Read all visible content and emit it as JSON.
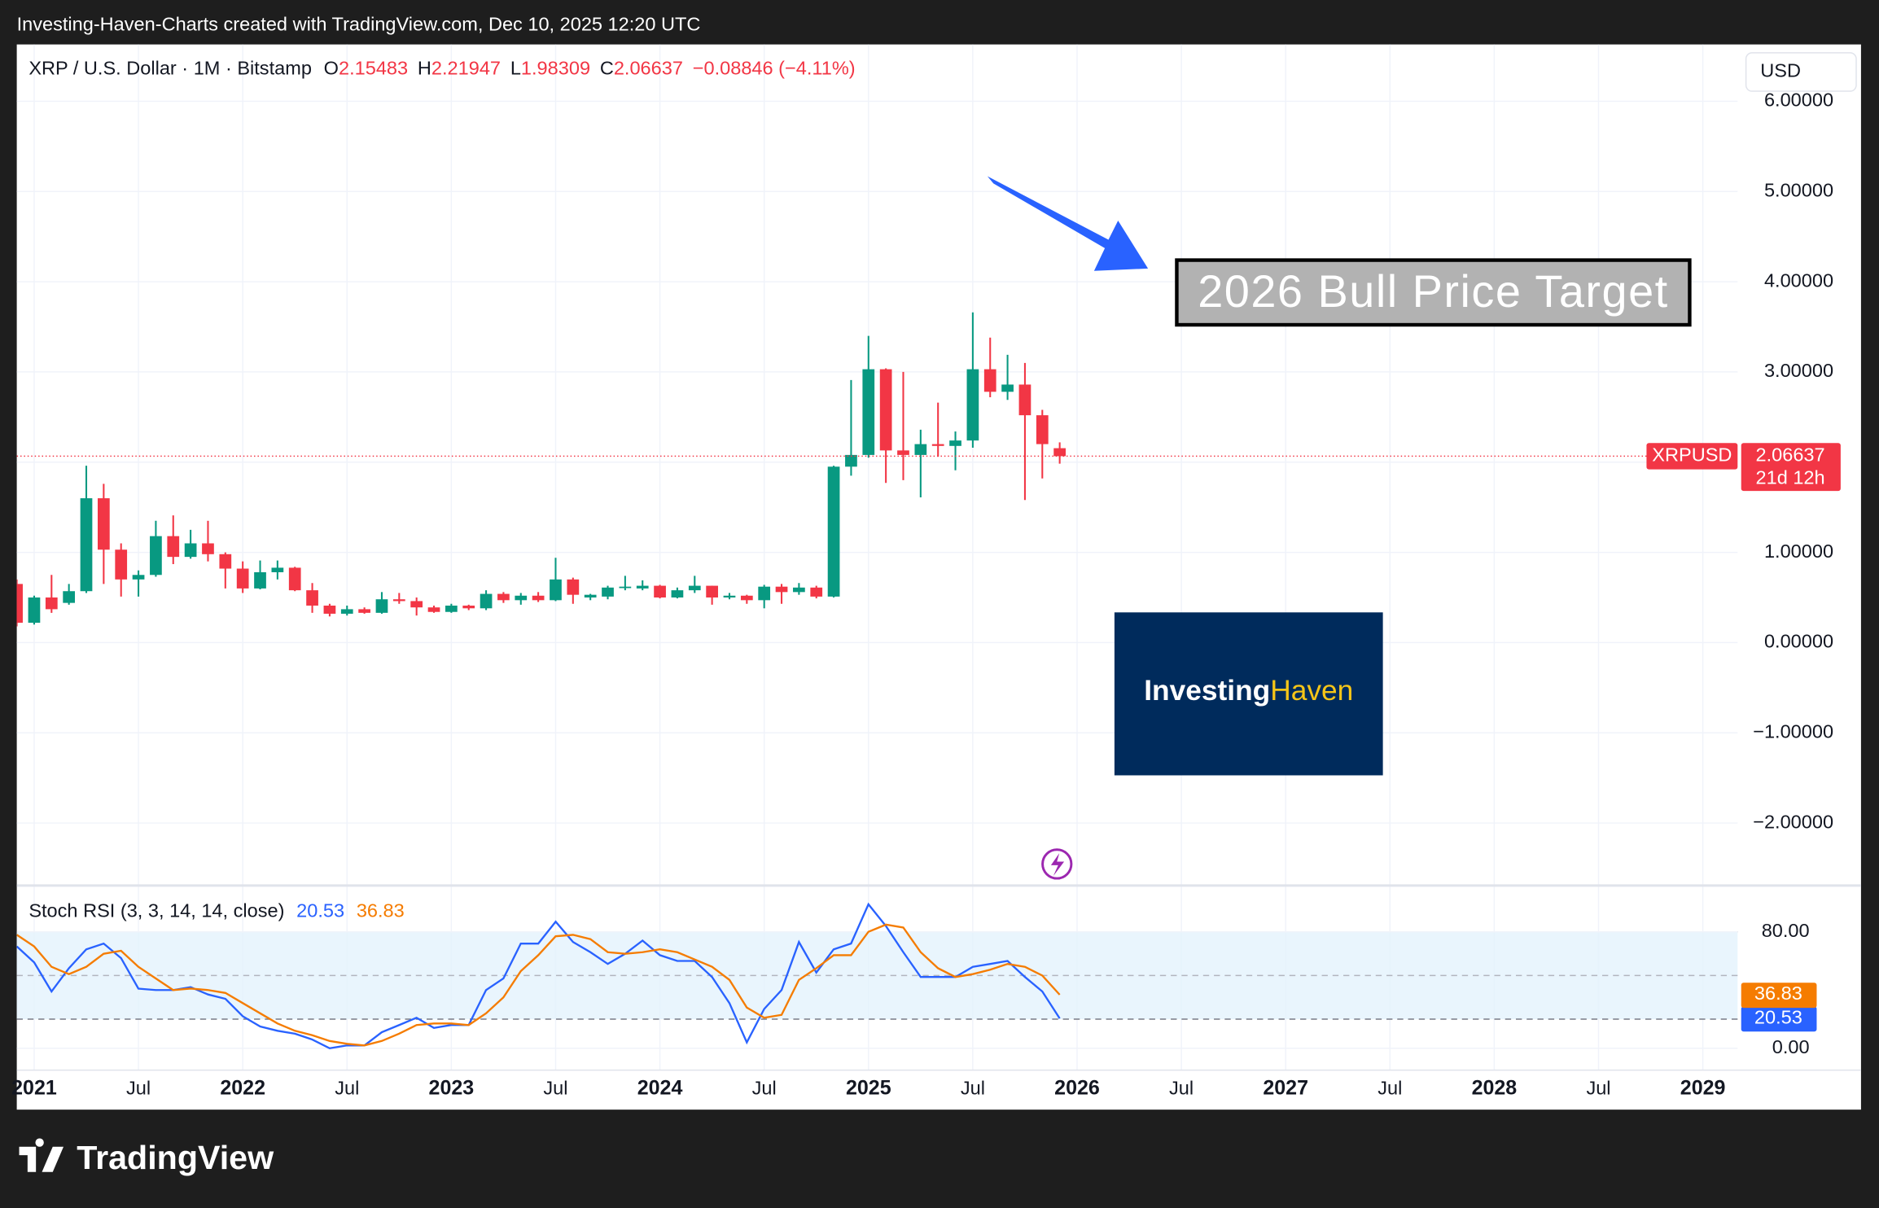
{
  "header": {
    "credit": "Investing-Haven-Charts created with TradingView.com, Dec 10, 2025 12:20 UTC"
  },
  "chart_data": {
    "type": "candlestick",
    "symbol": "XRP / U.S. Dollar · 1M · Bitstamp",
    "ohlc_labels": [
      "O",
      "H",
      "L",
      "C"
    ],
    "change": "−0.08846 (−4.11%)",
    "currency": "USD",
    "x": [
      "2020-12",
      "2021-01",
      "2021-02",
      "2021-03",
      "2021-04",
      "2021-05",
      "2021-06",
      "2021-07",
      "2021-08",
      "2021-09",
      "2021-10",
      "2021-11",
      "2021-12",
      "2022-01",
      "2022-02",
      "2022-03",
      "2022-04",
      "2022-05",
      "2022-06",
      "2022-07",
      "2022-08",
      "2022-09",
      "2022-10",
      "2022-11",
      "2022-12",
      "2023-01",
      "2023-02",
      "2023-03",
      "2023-04",
      "2023-05",
      "2023-06",
      "2023-07",
      "2023-08",
      "2023-09",
      "2023-10",
      "2023-11",
      "2023-12",
      "2024-01",
      "2024-02",
      "2024-03",
      "2024-04",
      "2024-05",
      "2024-06",
      "2024-07",
      "2024-08",
      "2024-09",
      "2024-10",
      "2024-11",
      "2024-12",
      "2025-01",
      "2025-02",
      "2025-03",
      "2025-04",
      "2025-05",
      "2025-06",
      "2025-07",
      "2025-08",
      "2025-09",
      "2025-10",
      "2025-11",
      "2025-12"
    ],
    "open": [
      0.65,
      0.22,
      0.5,
      0.44,
      0.57,
      1.6,
      1.03,
      0.7,
      0.75,
      1.18,
      0.95,
      1.1,
      0.98,
      0.82,
      0.6,
      0.78,
      0.83,
      0.58,
      0.41,
      0.32,
      0.37,
      0.33,
      0.48,
      0.46,
      0.39,
      0.34,
      0.41,
      0.38,
      0.54,
      0.47,
      0.52,
      0.47,
      0.7,
      0.5,
      0.51,
      0.61,
      0.6,
      0.63,
      0.5,
      0.58,
      0.63,
      0.5,
      0.52,
      0.47,
      0.62,
      0.56,
      0.61,
      0.51,
      1.95,
      2.08,
      3.03,
      2.13,
      2.08,
      2.2,
      2.18,
      2.24,
      3.03,
      2.78,
      2.86,
      2.52,
      2.15483
    ],
    "high": [
      0.7,
      0.52,
      0.75,
      0.65,
      1.96,
      1.76,
      1.1,
      0.8,
      1.35,
      1.41,
      1.25,
      1.35,
      1.0,
      0.9,
      0.91,
      0.91,
      0.84,
      0.66,
      0.43,
      0.41,
      0.39,
      0.56,
      0.55,
      0.5,
      0.41,
      0.43,
      0.42,
      0.58,
      0.56,
      0.55,
      0.56,
      0.94,
      0.72,
      0.54,
      0.63,
      0.74,
      0.69,
      0.64,
      0.61,
      0.74,
      0.63,
      0.55,
      0.53,
      0.64,
      0.65,
      0.66,
      0.63,
      1.96,
      2.91,
      3.4,
      3.04,
      3.0,
      2.36,
      2.66,
      2.34,
      3.66,
      3.38,
      3.19,
      3.1,
      2.58,
      2.21947
    ],
    "low": [
      0.18,
      0.2,
      0.33,
      0.42,
      0.55,
      0.65,
      0.51,
      0.51,
      0.73,
      0.87,
      0.93,
      0.9,
      0.6,
      0.55,
      0.59,
      0.7,
      0.57,
      0.33,
      0.29,
      0.3,
      0.32,
      0.32,
      0.43,
      0.3,
      0.33,
      0.33,
      0.36,
      0.36,
      0.44,
      0.42,
      0.45,
      0.46,
      0.43,
      0.47,
      0.48,
      0.58,
      0.58,
      0.49,
      0.49,
      0.55,
      0.42,
      0.48,
      0.43,
      0.38,
      0.43,
      0.53,
      0.49,
      0.5,
      1.85,
      2.05,
      1.77,
      1.8,
      1.61,
      2.06,
      1.91,
      2.16,
      2.72,
      2.69,
      1.58,
      1.82,
      1.98309
    ],
    "close": [
      0.22,
      0.5,
      0.37,
      0.57,
      1.6,
      1.03,
      0.7,
      0.75,
      1.18,
      0.95,
      1.1,
      0.98,
      0.82,
      0.6,
      0.78,
      0.83,
      0.58,
      0.41,
      0.32,
      0.37,
      0.33,
      0.48,
      0.46,
      0.39,
      0.34,
      0.41,
      0.38,
      0.54,
      0.47,
      0.52,
      0.47,
      0.7,
      0.53,
      0.53,
      0.61,
      0.62,
      0.63,
      0.5,
      0.58,
      0.63,
      0.5,
      0.52,
      0.47,
      0.62,
      0.56,
      0.61,
      0.51,
      1.95,
      2.08,
      3.03,
      2.13,
      2.08,
      2.2,
      2.18,
      2.24,
      3.03,
      2.78,
      2.86,
      2.52,
      2.2,
      2.06637
    ],
    "up_color": "#089981",
    "down_color": "#f23645",
    "ylim": [
      -2.68,
      6.63
    ],
    "yticks": [
      {
        "value": -2,
        "label": "−2.00000"
      },
      {
        "value": -1,
        "label": "−1.00000"
      },
      {
        "value": 0,
        "label": "0.00000"
      },
      {
        "value": 1,
        "label": "1.00000"
      },
      {
        "value": 2,
        "label": "2.00000"
      },
      {
        "value": 3,
        "label": "3.00000"
      },
      {
        "value": 4,
        "label": "4.00000"
      },
      {
        "value": 5,
        "label": "5.00000"
      },
      {
        "value": 6,
        "label": "6.00000"
      }
    ],
    "xlim": [
      "2020-12",
      "2029-03"
    ],
    "xticks": [
      {
        "value": "2021-01",
        "label": "2021"
      },
      {
        "value": "2021-07",
        "label": "Jul"
      },
      {
        "value": "2022-01",
        "label": "2022"
      },
      {
        "value": "2022-07",
        "label": "Jul"
      },
      {
        "value": "2023-01",
        "label": "2023"
      },
      {
        "value": "2023-07",
        "label": "Jul"
      },
      {
        "value": "2024-01",
        "label": "2024"
      },
      {
        "value": "2024-07",
        "label": "Jul"
      },
      {
        "value": "2025-01",
        "label": "2025"
      },
      {
        "value": "2025-07",
        "label": "Jul"
      },
      {
        "value": "2026-01",
        "label": "2026"
      },
      {
        "value": "2026-07",
        "label": "Jul"
      },
      {
        "value": "2027-01",
        "label": "2027"
      },
      {
        "value": "2027-07",
        "label": "Jul"
      },
      {
        "value": "2028-01",
        "label": "2028"
      },
      {
        "value": "2028-07",
        "label": "Jul"
      },
      {
        "value": "2029-01",
        "label": "2029"
      }
    ],
    "grid": true,
    "last_price": {
      "symbol": "XRPUSD",
      "countdown": "21d 12h"
    },
    "annotation": "2026 Bull Price Target",
    "indicator": {
      "title": "Stoch RSI (3, 3, 14, 14, close)",
      "ylim": [
        -15,
        111
      ],
      "yticks": [
        {
          "value": 0,
          "label": "0.00"
        },
        {
          "value": 80,
          "label": "80.00"
        }
      ],
      "levels": [
        80,
        50,
        20
      ],
      "band_color": "#e3f2fd",
      "series": [
        {
          "color": "#2962ff",
          "values": [
            70,
            59,
            39,
            55,
            68,
            72,
            62,
            41,
            40,
            40,
            42,
            37,
            34,
            22,
            15,
            12,
            10,
            6,
            0,
            2,
            2,
            11,
            16,
            21,
            14,
            16,
            16,
            40,
            48,
            72,
            72,
            87,
            73,
            66,
            58,
            65,
            74,
            64,
            60,
            60,
            49,
            31,
            4,
            27,
            40,
            73,
            52,
            68,
            72,
            99,
            84,
            66,
            49,
            49,
            49,
            56,
            58,
            60,
            49,
            39,
            20.53
          ]
        },
        {
          "color": "#f57c00",
          "values": [
            78,
            70,
            56,
            51,
            56,
            65,
            67,
            56,
            48,
            40,
            41,
            40,
            38,
            31,
            24,
            17,
            12,
            9,
            5,
            3,
            2,
            5,
            10,
            16,
            17,
            17,
            16,
            24,
            35,
            53,
            64,
            77,
            78,
            75,
            66,
            65,
            66,
            68,
            66,
            61,
            56,
            47,
            28,
            21,
            23,
            47,
            55,
            64,
            64,
            80,
            85,
            83,
            66,
            55,
            49,
            51,
            54,
            58,
            56,
            50,
            36.83
          ]
        }
      ]
    }
  },
  "branding": {
    "watermark_left": "Investing",
    "watermark_right": "Haven",
    "footer": "TradingView"
  }
}
